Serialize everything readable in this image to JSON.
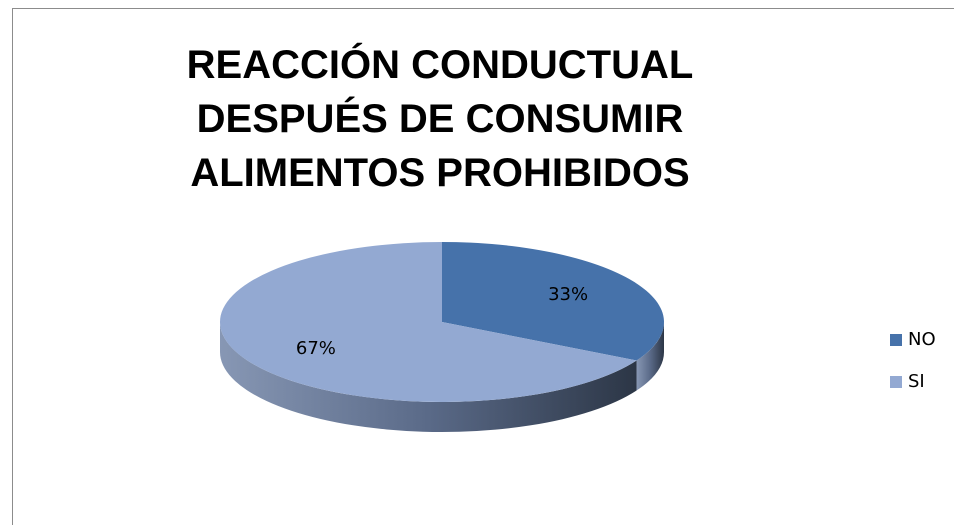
{
  "chart_data": {
    "type": "pie",
    "title": "REACCIÓN CONDUCTUAL DESPUÉS DE CONSUMIR ALIMENTOS PROHIBIDOS",
    "categories": [
      "NO",
      "SI"
    ],
    "values": [
      33,
      67
    ],
    "value_labels": [
      "33%",
      "67%"
    ],
    "colors": [
      "#4672aa",
      "#93a9d2"
    ],
    "legend": "right"
  }
}
